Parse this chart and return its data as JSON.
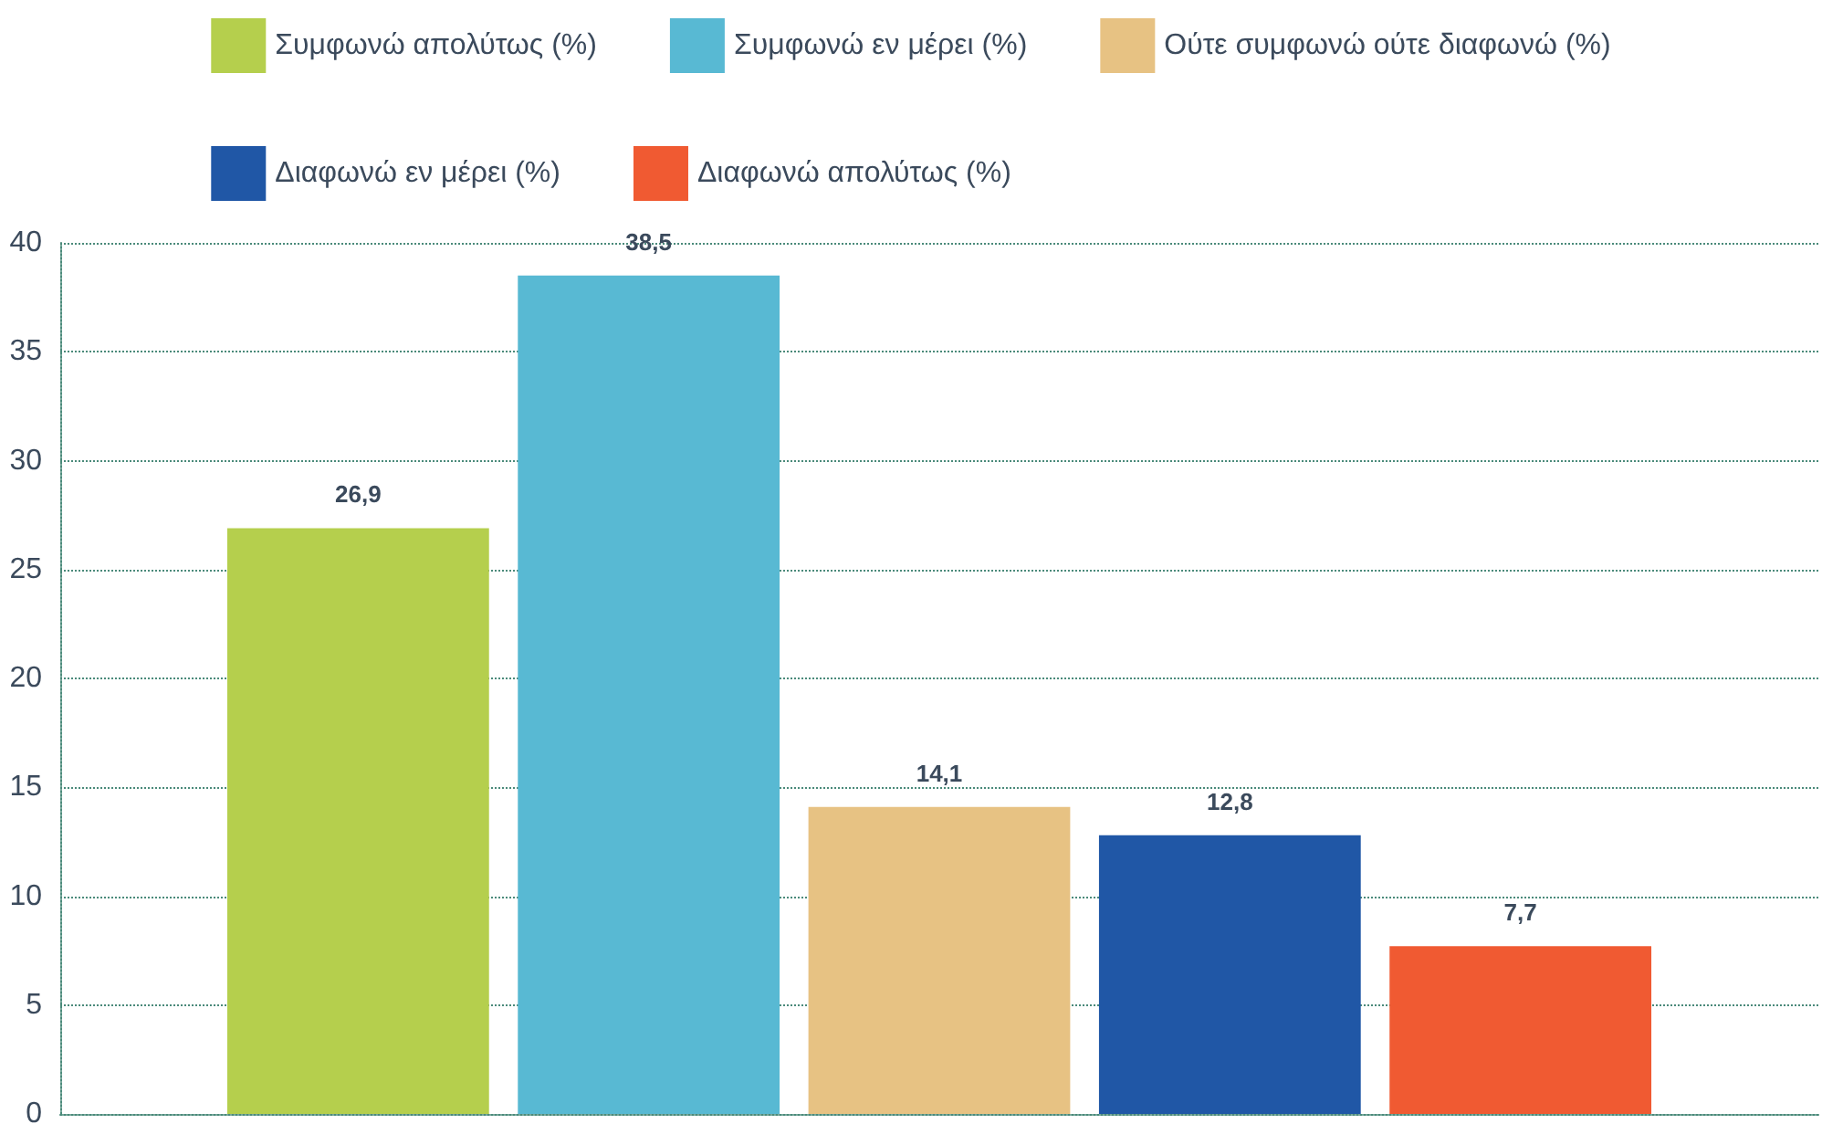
{
  "chart_data": {
    "type": "bar",
    "categories": [
      null
    ],
    "series": [
      {
        "name": "Συμφωνώ απολύτως (%)",
        "color": "#b5cf4d",
        "values": [
          26.9
        ],
        "value_labels": [
          "26,9"
        ]
      },
      {
        "name": "Συμφωνώ εν μέρει (%)",
        "color": "#58b9d3",
        "values": [
          38.5
        ],
        "value_labels": [
          "38,5"
        ]
      },
      {
        "name": "Ούτε συμφωνώ ούτε διαφωνώ (%)",
        "color": "#e7c283",
        "values": [
          14.1
        ],
        "value_labels": [
          "14,1"
        ]
      },
      {
        "name": "Διαφωνώ εν μέρει (%)",
        "color": "#2057a6",
        "values": [
          12.8
        ],
        "value_labels": [
          "12,8"
        ]
      },
      {
        "name": "Διαφωνώ απολύτως (%)",
        "color": "#f05a32",
        "values": [
          7.7
        ],
        "value_labels": [
          "7,7"
        ]
      }
    ],
    "ylim": [
      0,
      40
    ],
    "yticks": [
      0,
      5,
      10,
      15,
      20,
      25,
      30,
      35,
      40
    ],
    "grid": "y",
    "legend": "top"
  }
}
